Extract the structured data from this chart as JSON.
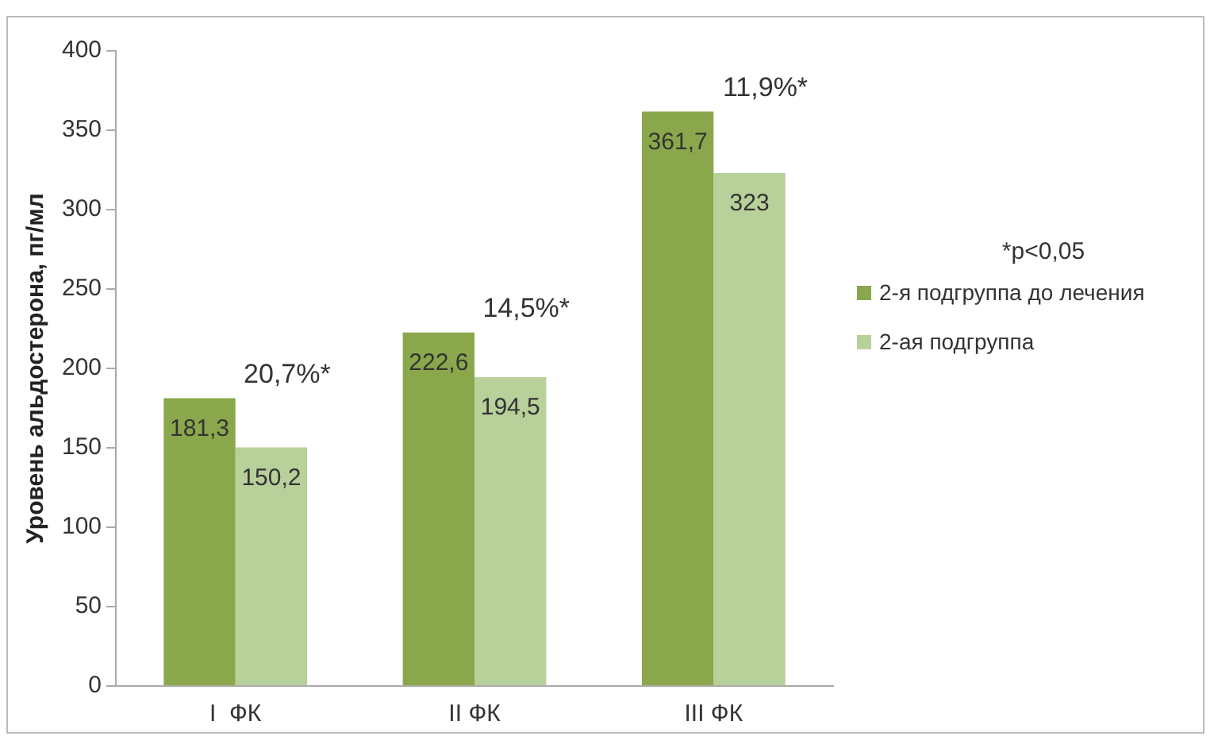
{
  "chart_data": {
    "type": "bar",
    "ylabel": "Уровень альдостерона, пг/мл",
    "categories": [
      "I  ФК",
      "II ФК",
      "III ФК"
    ],
    "series": [
      {
        "name": "2-я подгруппа до лечения",
        "color": "#8aa84b",
        "values": [
          181.3,
          222.6,
          361.7
        ],
        "value_labels": [
          "181,3",
          "222,6",
          "361,7"
        ]
      },
      {
        "name": "2-ая подгруппа",
        "color": "#b8d09a",
        "values": [
          150.2,
          194.5,
          323
        ],
        "value_labels": [
          "150,2",
          "194,5",
          "323"
        ]
      }
    ],
    "ylim": [
      0,
      400
    ],
    "yticks": [
      0,
      50,
      100,
      150,
      200,
      250,
      300,
      350,
      400
    ],
    "grid": false,
    "legend": "right",
    "annotations": [
      "20,7%*",
      "14,5%*",
      "11,9%*",
      "*p<0,05"
    ]
  }
}
